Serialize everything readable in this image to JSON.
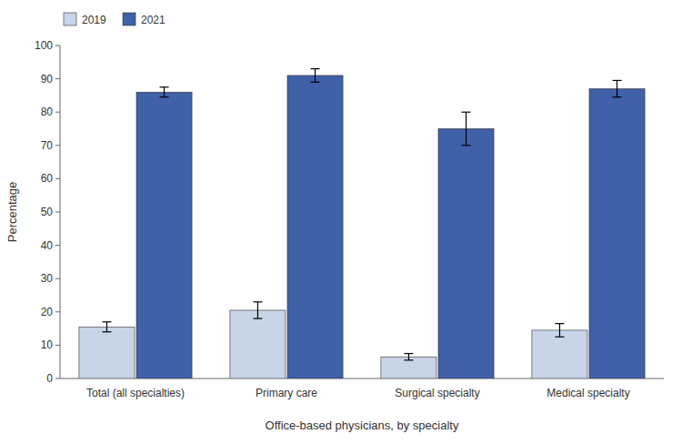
{
  "chart_data": {
    "type": "bar",
    "xlabel": "Office-based physicians, by specialty",
    "ylabel": "Percentage",
    "categories": [
      "Total (all specialties)",
      "Primary care",
      "Surgical specialty",
      "Medical specialty"
    ],
    "series": [
      {
        "name": "2019",
        "color": "#c8d4e8",
        "values": [
          15.5,
          20.5,
          6.5,
          14.5
        ],
        "errors": [
          1.5,
          2.5,
          1.0,
          2.0
        ]
      },
      {
        "name": "2021",
        "color": "#4060a8",
        "values": [
          86.0,
          91.0,
          75.0,
          87.0
        ],
        "errors": [
          1.5,
          2.0,
          5.0,
          2.5
        ]
      }
    ],
    "ylim": [
      0,
      100
    ],
    "yticks": [
      0,
      10,
      20,
      30,
      40,
      50,
      60,
      70,
      80,
      90,
      100
    ],
    "grid": false,
    "legend": "upper left"
  }
}
